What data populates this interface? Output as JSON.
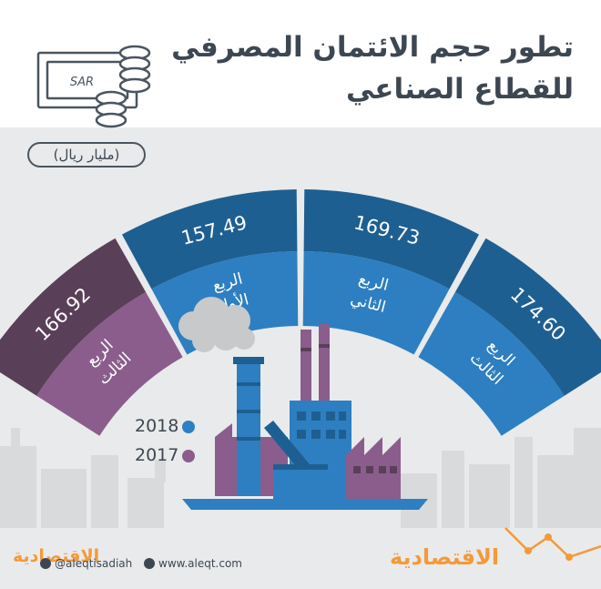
{
  "header": {
    "title_line1": "تطور حجم الائتمان المصرفي",
    "title_line2": "للقطاع الصناعي",
    "currency_label": "SAR",
    "unit_label": "(مليار ريال)"
  },
  "colors": {
    "year_2018": "#2d7fc1",
    "year_2018_dark": "#1e5f92",
    "year_2017": "#8b5d8d",
    "year_2017_dark": "#5a3f58",
    "accent_orange": "#f29a3a",
    "title_text": "#3d4752"
  },
  "chart_data": {
    "type": "bar",
    "unit": "(مليار ريال)",
    "series": [
      {
        "name": "2017",
        "categories": [
          "الربع الثالث"
        ],
        "values": [
          166.92
        ]
      },
      {
        "name": "2018",
        "categories": [
          "الربع الأول",
          "الربع الثاني",
          "الربع الثالث"
        ],
        "values": [
          157.49,
          169.73,
          174.6
        ]
      }
    ],
    "segments": [
      {
        "year": "2017",
        "quarter_line1": "الربع",
        "quarter_line2": "الثالث",
        "value": 166.92,
        "value_label": "166.92"
      },
      {
        "year": "2018",
        "quarter_line1": "الربع",
        "quarter_line2": "الأول",
        "value": 157.49,
        "value_label": "157.49"
      },
      {
        "year": "2018",
        "quarter_line1": "الربع",
        "quarter_line2": "الثاني",
        "value": 169.73,
        "value_label": "169.73"
      },
      {
        "year": "2018",
        "quarter_line1": "الربع",
        "quarter_line2": "الثالث",
        "value": 174.6,
        "value_label": "174.60"
      }
    ],
    "legend": [
      {
        "label": "2018",
        "color": "#2d7fc1"
      },
      {
        "label": "2017",
        "color": "#8b5d8d"
      }
    ]
  },
  "footer": {
    "social_handle": "@aleqtisadiah",
    "website": "www.aleqt.com",
    "logo_left": "الاقتصادية",
    "logo_right": "الاقتصادية"
  }
}
